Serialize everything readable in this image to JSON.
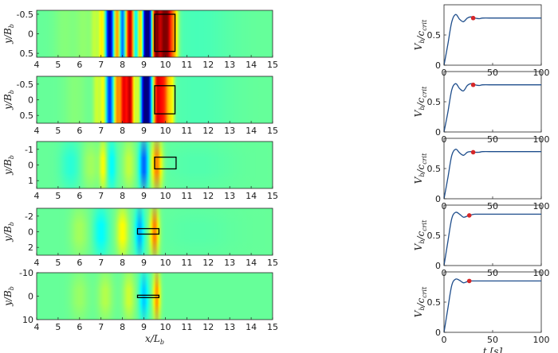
{
  "chart_data": [
    {
      "type": "heatmap",
      "panel": 1,
      "xlabel": "",
      "ylabel": "y/B_b",
      "xlim": [
        4,
        15
      ],
      "ylim": [
        -0.6,
        0.6
      ],
      "x_ticks": [
        "4",
        "5",
        "6",
        "7",
        "8",
        "9",
        "10",
        "11",
        "12",
        "13",
        "14",
        "15"
      ],
      "y_ticks": [
        "-0.5",
        "0",
        "0.5"
      ],
      "y_tick_values": [
        -0.5,
        0,
        0.5
      ],
      "colormap": "jet",
      "field_peaks": [
        {
          "x": 5.3,
          "amplitude": 0.06,
          "width": 0.35
        },
        {
          "x": 6.2,
          "amplitude": 0.08,
          "width": 0.3
        },
        {
          "x": 6.7,
          "amplitude": 0.16,
          "width": 0.12
        },
        {
          "x": 7.05,
          "amplitude": 0.35,
          "width": 0.12
        },
        {
          "x": 7.4,
          "amplitude": -0.9,
          "width": 0.13
        },
        {
          "x": 7.75,
          "amplitude": 0.55,
          "width": 0.1
        },
        {
          "x": 8.0,
          "amplitude": -0.55,
          "width": 0.1
        },
        {
          "x": 8.35,
          "amplitude": 0.95,
          "width": 0.14
        },
        {
          "x": 8.6,
          "amplitude": -0.4,
          "width": 0.09
        },
        {
          "x": 8.85,
          "amplitude": 0.55,
          "width": 0.09
        },
        {
          "x": 9.15,
          "amplitude": -1.2,
          "width": 0.15
        },
        {
          "x": 9.55,
          "amplitude": 0.9,
          "width": 0.12
        },
        {
          "x": 10.0,
          "amplitude": 1.15,
          "width": 0.25
        },
        {
          "x": 10.45,
          "amplitude": 0.25,
          "width": 0.12
        },
        {
          "x": 11.5,
          "amplitude": -0.06,
          "width": 1.2
        }
      ],
      "box": {
        "x0": 9.5,
        "x1": 10.45,
        "y0": -0.5,
        "y1": 0.45
      }
    },
    {
      "type": "heatmap",
      "panel": 2,
      "xlabel": "",
      "ylabel": "y/B_b",
      "xlim": [
        4,
        15
      ],
      "ylim": [
        -0.75,
        0.75
      ],
      "x_ticks": [
        "4",
        "5",
        "6",
        "7",
        "8",
        "9",
        "10",
        "11",
        "12",
        "13",
        "14",
        "15"
      ],
      "y_ticks": [
        "-0.5",
        "0",
        "0.5"
      ],
      "y_tick_values": [
        -0.5,
        0,
        0.5
      ],
      "colormap": "jet",
      "field_peaks": [
        {
          "x": 5.8,
          "amplitude": 0.06,
          "width": 0.4
        },
        {
          "x": 6.8,
          "amplitude": 0.2,
          "width": 0.12
        },
        {
          "x": 7.1,
          "amplitude": 0.3,
          "width": 0.1
        },
        {
          "x": 7.4,
          "amplitude": -0.6,
          "width": 0.12
        },
        {
          "x": 7.75,
          "amplitude": 0.5,
          "width": 0.1
        },
        {
          "x": 8.05,
          "amplitude": 0.8,
          "width": 0.12
        },
        {
          "x": 8.35,
          "amplitude": 0.9,
          "width": 0.12
        },
        {
          "x": 8.75,
          "amplitude": 0.3,
          "width": 0.1
        },
        {
          "x": 9.1,
          "amplitude": -1.2,
          "width": 0.16
        },
        {
          "x": 9.6,
          "amplitude": 0.6,
          "width": 0.12
        },
        {
          "x": 9.9,
          "amplitude": 0.75,
          "width": 0.2
        },
        {
          "x": 10.3,
          "amplitude": 0.25,
          "width": 0.1
        },
        {
          "x": 11.5,
          "amplitude": -0.05,
          "width": 1.2
        }
      ],
      "box": {
        "x0": 9.5,
        "x1": 10.45,
        "y0": -0.45,
        "y1": 0.45
      }
    },
    {
      "type": "heatmap",
      "panel": 3,
      "xlabel": "",
      "ylabel": "y/B_b",
      "xlim": [
        4,
        15
      ],
      "ylim": [
        -1.5,
        1.5
      ],
      "x_ticks": [
        "4",
        "5",
        "6",
        "7",
        "8",
        "9",
        "10",
        "11",
        "12",
        "13",
        "14",
        "15"
      ],
      "y_ticks": [
        "-1",
        "0",
        "1"
      ],
      "y_tick_values": [
        -1,
        0,
        1
      ],
      "colormap": "jet",
      "field_peaks": [
        {
          "x": 5.6,
          "amplitude": -0.12,
          "width": 0.35
        },
        {
          "x": 6.5,
          "amplitude": 0.12,
          "width": 0.3
        },
        {
          "x": 7.1,
          "amplitude": 0.28,
          "width": 0.12
        },
        {
          "x": 7.5,
          "amplitude": -0.2,
          "width": 0.15
        },
        {
          "x": 8.3,
          "amplitude": 0.18,
          "width": 0.2
        },
        {
          "x": 9.0,
          "amplitude": -0.5,
          "width": 0.15
        },
        {
          "x": 9.6,
          "amplitude": 0.55,
          "width": 0.18
        },
        {
          "x": 11.5,
          "amplitude": -0.04,
          "width": 1.2
        }
      ],
      "box": {
        "x0": 9.5,
        "x1": 10.5,
        "y0": -0.5,
        "y1": 0.25
      }
    },
    {
      "type": "heatmap",
      "panel": 4,
      "xlabel": "",
      "ylabel": "y/B_b",
      "xlim": [
        4,
        15
      ],
      "ylim": [
        -3,
        3
      ],
      "x_ticks": [
        "4",
        "5",
        "6",
        "7",
        "8",
        "9",
        "10",
        "11",
        "12",
        "13",
        "14",
        "15"
      ],
      "y_ticks": [
        "-2",
        "0",
        "2"
      ],
      "y_tick_values": [
        -2,
        0,
        2
      ],
      "colormap": "jet",
      "field_peaks": [
        {
          "x": 6.0,
          "amplitude": 0.12,
          "width": 0.3
        },
        {
          "x": 7.0,
          "amplitude": -0.2,
          "width": 0.25
        },
        {
          "x": 8.0,
          "amplitude": 0.3,
          "width": 0.2
        },
        {
          "x": 8.8,
          "amplitude": -0.35,
          "width": 0.15
        },
        {
          "x": 9.5,
          "amplitude": 0.55,
          "width": 0.15
        },
        {
          "x": 11.5,
          "amplitude": -0.03,
          "width": 1.2
        }
      ],
      "box": {
        "x0": 8.7,
        "x1": 9.7,
        "y0": -0.4,
        "y1": 0.3
      }
    },
    {
      "type": "heatmap",
      "panel": 5,
      "xlabel": "x/L_b",
      "ylabel": "y/B_b",
      "xlim": [
        4,
        15
      ],
      "ylim": [
        -10,
        10
      ],
      "x_ticks": [
        "4",
        "5",
        "6",
        "7",
        "8",
        "9",
        "10",
        "11",
        "12",
        "13",
        "14",
        "15"
      ],
      "y_ticks": [
        "-10",
        "0",
        "10"
      ],
      "y_tick_values": [
        -10,
        0,
        10
      ],
      "colormap": "jet",
      "field_peaks": [
        {
          "x": 6.0,
          "amplitude": 0.1,
          "width": 0.3
        },
        {
          "x": 7.2,
          "amplitude": 0.15,
          "width": 0.25
        },
        {
          "x": 8.3,
          "amplitude": 0.2,
          "width": 0.2
        },
        {
          "x": 9.0,
          "amplitude": -0.3,
          "width": 0.15
        },
        {
          "x": 9.6,
          "amplitude": 0.5,
          "width": 0.12
        }
      ],
      "box": {
        "x0": 8.7,
        "x1": 9.7,
        "y0": -0.4,
        "y1": 0.2
      }
    },
    {
      "type": "line",
      "panel": 1,
      "ylabel": "V_b/c_crit",
      "xlabel": "",
      "xlim": [
        0,
        100
      ],
      "ylim": [
        0,
        1
      ],
      "x_ticks": [
        "0",
        "50",
        "100"
      ],
      "y_ticks": [
        "0",
        "0.5"
      ],
      "y_tick_values": [
        0,
        0.5
      ],
      "x": [
        0,
        4,
        8,
        12,
        16,
        20,
        24,
        28,
        32,
        36,
        40,
        50,
        60,
        70,
        80,
        90,
        100
      ],
      "y": [
        0,
        0.35,
        0.72,
        0.84,
        0.76,
        0.72,
        0.78,
        0.8,
        0.78,
        0.77,
        0.78,
        0.78,
        0.78,
        0.78,
        0.78,
        0.78,
        0.78
      ],
      "marker": {
        "x": 30,
        "y": 0.78,
        "color": "#d62728"
      }
    },
    {
      "type": "line",
      "panel": 2,
      "ylabel": "V_b/c_crit",
      "xlabel": "",
      "xlim": [
        0,
        100
      ],
      "ylim": [
        0,
        1
      ],
      "x_ticks": [
        "0",
        "50",
        "100"
      ],
      "y_ticks": [
        "0",
        "0.5"
      ],
      "y_tick_values": [
        0,
        0.5
      ],
      "x": [
        0,
        4,
        8,
        12,
        16,
        20,
        24,
        28,
        32,
        36,
        40,
        50,
        60,
        70,
        80,
        90,
        100
      ],
      "y": [
        0,
        0.33,
        0.7,
        0.8,
        0.72,
        0.68,
        0.77,
        0.8,
        0.78,
        0.77,
        0.78,
        0.78,
        0.78,
        0.78,
        0.78,
        0.78,
        0.78
      ],
      "marker": {
        "x": 30,
        "y": 0.78,
        "color": "#d62728"
      }
    },
    {
      "type": "line",
      "panel": 3,
      "ylabel": "V_b/c_crit",
      "xlabel": "",
      "xlim": [
        0,
        100
      ],
      "ylim": [
        0,
        1
      ],
      "x_ticks": [
        "0",
        "50",
        "100"
      ],
      "y_ticks": [
        "0",
        "0.5"
      ],
      "y_tick_values": [
        0,
        0.5
      ],
      "x": [
        0,
        4,
        8,
        12,
        16,
        20,
        24,
        28,
        32,
        36,
        40,
        50,
        60,
        70,
        80,
        90,
        100
      ],
      "y": [
        0,
        0.35,
        0.72,
        0.82,
        0.76,
        0.72,
        0.77,
        0.78,
        0.77,
        0.77,
        0.78,
        0.78,
        0.78,
        0.78,
        0.78,
        0.78,
        0.78
      ],
      "marker": {
        "x": 30,
        "y": 0.77,
        "color": "#d62728"
      }
    },
    {
      "type": "line",
      "panel": 4,
      "ylabel": "V_b/c_crit",
      "xlabel": "",
      "xlim": [
        0,
        100
      ],
      "ylim": [
        0,
        1
      ],
      "x_ticks": [
        "0",
        "50",
        "100"
      ],
      "y_ticks": [
        "0",
        "0.5"
      ],
      "y_tick_values": [
        0,
        0.5
      ],
      "x": [
        0,
        4,
        8,
        12,
        16,
        20,
        24,
        28,
        32,
        36,
        40,
        50,
        60,
        70,
        80,
        90,
        100
      ],
      "y": [
        0,
        0.4,
        0.78,
        0.88,
        0.85,
        0.8,
        0.82,
        0.84,
        0.85,
        0.85,
        0.85,
        0.85,
        0.85,
        0.85,
        0.85,
        0.85,
        0.85
      ],
      "marker": {
        "x": 26,
        "y": 0.83,
        "color": "#d62728"
      }
    },
    {
      "type": "line",
      "panel": 5,
      "ylabel": "V_b/c_crit",
      "xlabel": "t [s]",
      "xlim": [
        0,
        100
      ],
      "ylim": [
        0,
        1
      ],
      "x_ticks": [
        "0",
        "50",
        "100"
      ],
      "y_ticks": [
        "0",
        "0.5"
      ],
      "y_tick_values": [
        0,
        0.5
      ],
      "x": [
        0,
        4,
        8,
        12,
        16,
        20,
        24,
        28,
        32,
        36,
        40,
        50,
        60,
        70,
        80,
        90,
        100
      ],
      "y": [
        0,
        0.4,
        0.78,
        0.88,
        0.86,
        0.82,
        0.84,
        0.85,
        0.85,
        0.85,
        0.85,
        0.85,
        0.85,
        0.85,
        0.85,
        0.85,
        0.85
      ],
      "marker": {
        "x": 26,
        "y": 0.85,
        "color": "#d62728"
      }
    }
  ]
}
